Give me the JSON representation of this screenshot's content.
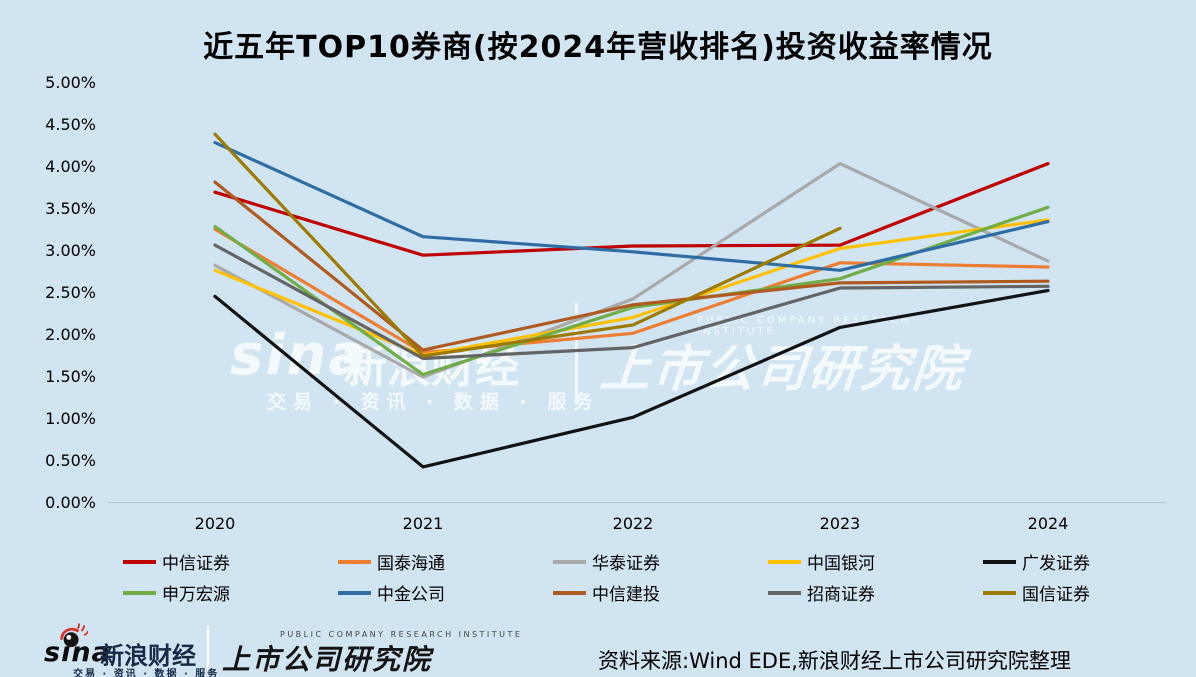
{
  "title": "近五年TOP10券商(按2024年营收排名)投资收益率情况",
  "chart_data": {
    "type": "line",
    "title": "近五年TOP10券商(按2024年营收排名)投资收益率情况",
    "xlabel": "",
    "ylabel": "",
    "unit": "%",
    "ylim": [
      0,
      5
    ],
    "grid": false,
    "legend_position": "bottom",
    "categories": [
      "2020",
      "2021",
      "2022",
      "2023",
      "2024"
    ],
    "y_ticks": [
      "5.00%",
      "4.50%",
      "4.00%",
      "3.50%",
      "3.00%",
      "2.50%",
      "2.00%",
      "1.50%",
      "1.00%",
      "0.50%",
      "0.00%"
    ],
    "series": [
      {
        "name": "中信证券",
        "color": "#C00000",
        "values": [
          3.7,
          2.95,
          3.06,
          3.07,
          4.04
        ]
      },
      {
        "name": "国泰海通",
        "color": "#ED7D31",
        "values": [
          3.26,
          1.79,
          2.02,
          2.86,
          2.81
        ]
      },
      {
        "name": "华泰证券",
        "color": "#A9A9A9",
        "values": [
          2.83,
          1.5,
          2.43,
          4.04,
          2.88
        ]
      },
      {
        "name": "中国银河",
        "color": "#FFC000",
        "values": [
          2.77,
          1.76,
          2.21,
          3.03,
          3.37
        ]
      },
      {
        "name": "广发证券",
        "color": "#121212",
        "values": [
          2.46,
          0.43,
          1.02,
          2.09,
          2.53
        ]
      },
      {
        "name": "申万宏源",
        "color": "#70AD47",
        "values": [
          3.29,
          1.53,
          2.33,
          2.67,
          3.52
        ]
      },
      {
        "name": "中金公司",
        "color": "#2E6DA4",
        "values": [
          4.29,
          3.17,
          2.99,
          2.77,
          3.35
        ]
      },
      {
        "name": "中信建投",
        "color": "#AE5A21",
        "values": [
          3.82,
          1.82,
          2.36,
          2.62,
          2.64
        ]
      },
      {
        "name": "招商证券",
        "color": "#646464",
        "values": [
          3.07,
          1.72,
          1.85,
          2.56,
          2.58
        ]
      },
      {
        "name": "国信证券",
        "color": "#9C7A00",
        "values": [
          4.39,
          1.75,
          2.12,
          3.27,
          null
        ]
      }
    ]
  },
  "watermark": {
    "sina": "sina",
    "brand": "新浪财经",
    "tagline": "交易 · 资讯 · 数据 · 服务",
    "institute_en": "PUBLIC COMPANY RESEARCH INSTITUTE",
    "institute": "上市公司研究院"
  },
  "footer": {
    "sina": "sina",
    "brand": "新浪财经",
    "tagline": "交易 · 资讯 · 数据 · 服务",
    "institute_en": "PUBLIC COMPANY RESEARCH INSTITUTE",
    "institute": "上市公司研究院",
    "source": "资料来源:Wind EDE,新浪财经上市公司研究院整理"
  }
}
